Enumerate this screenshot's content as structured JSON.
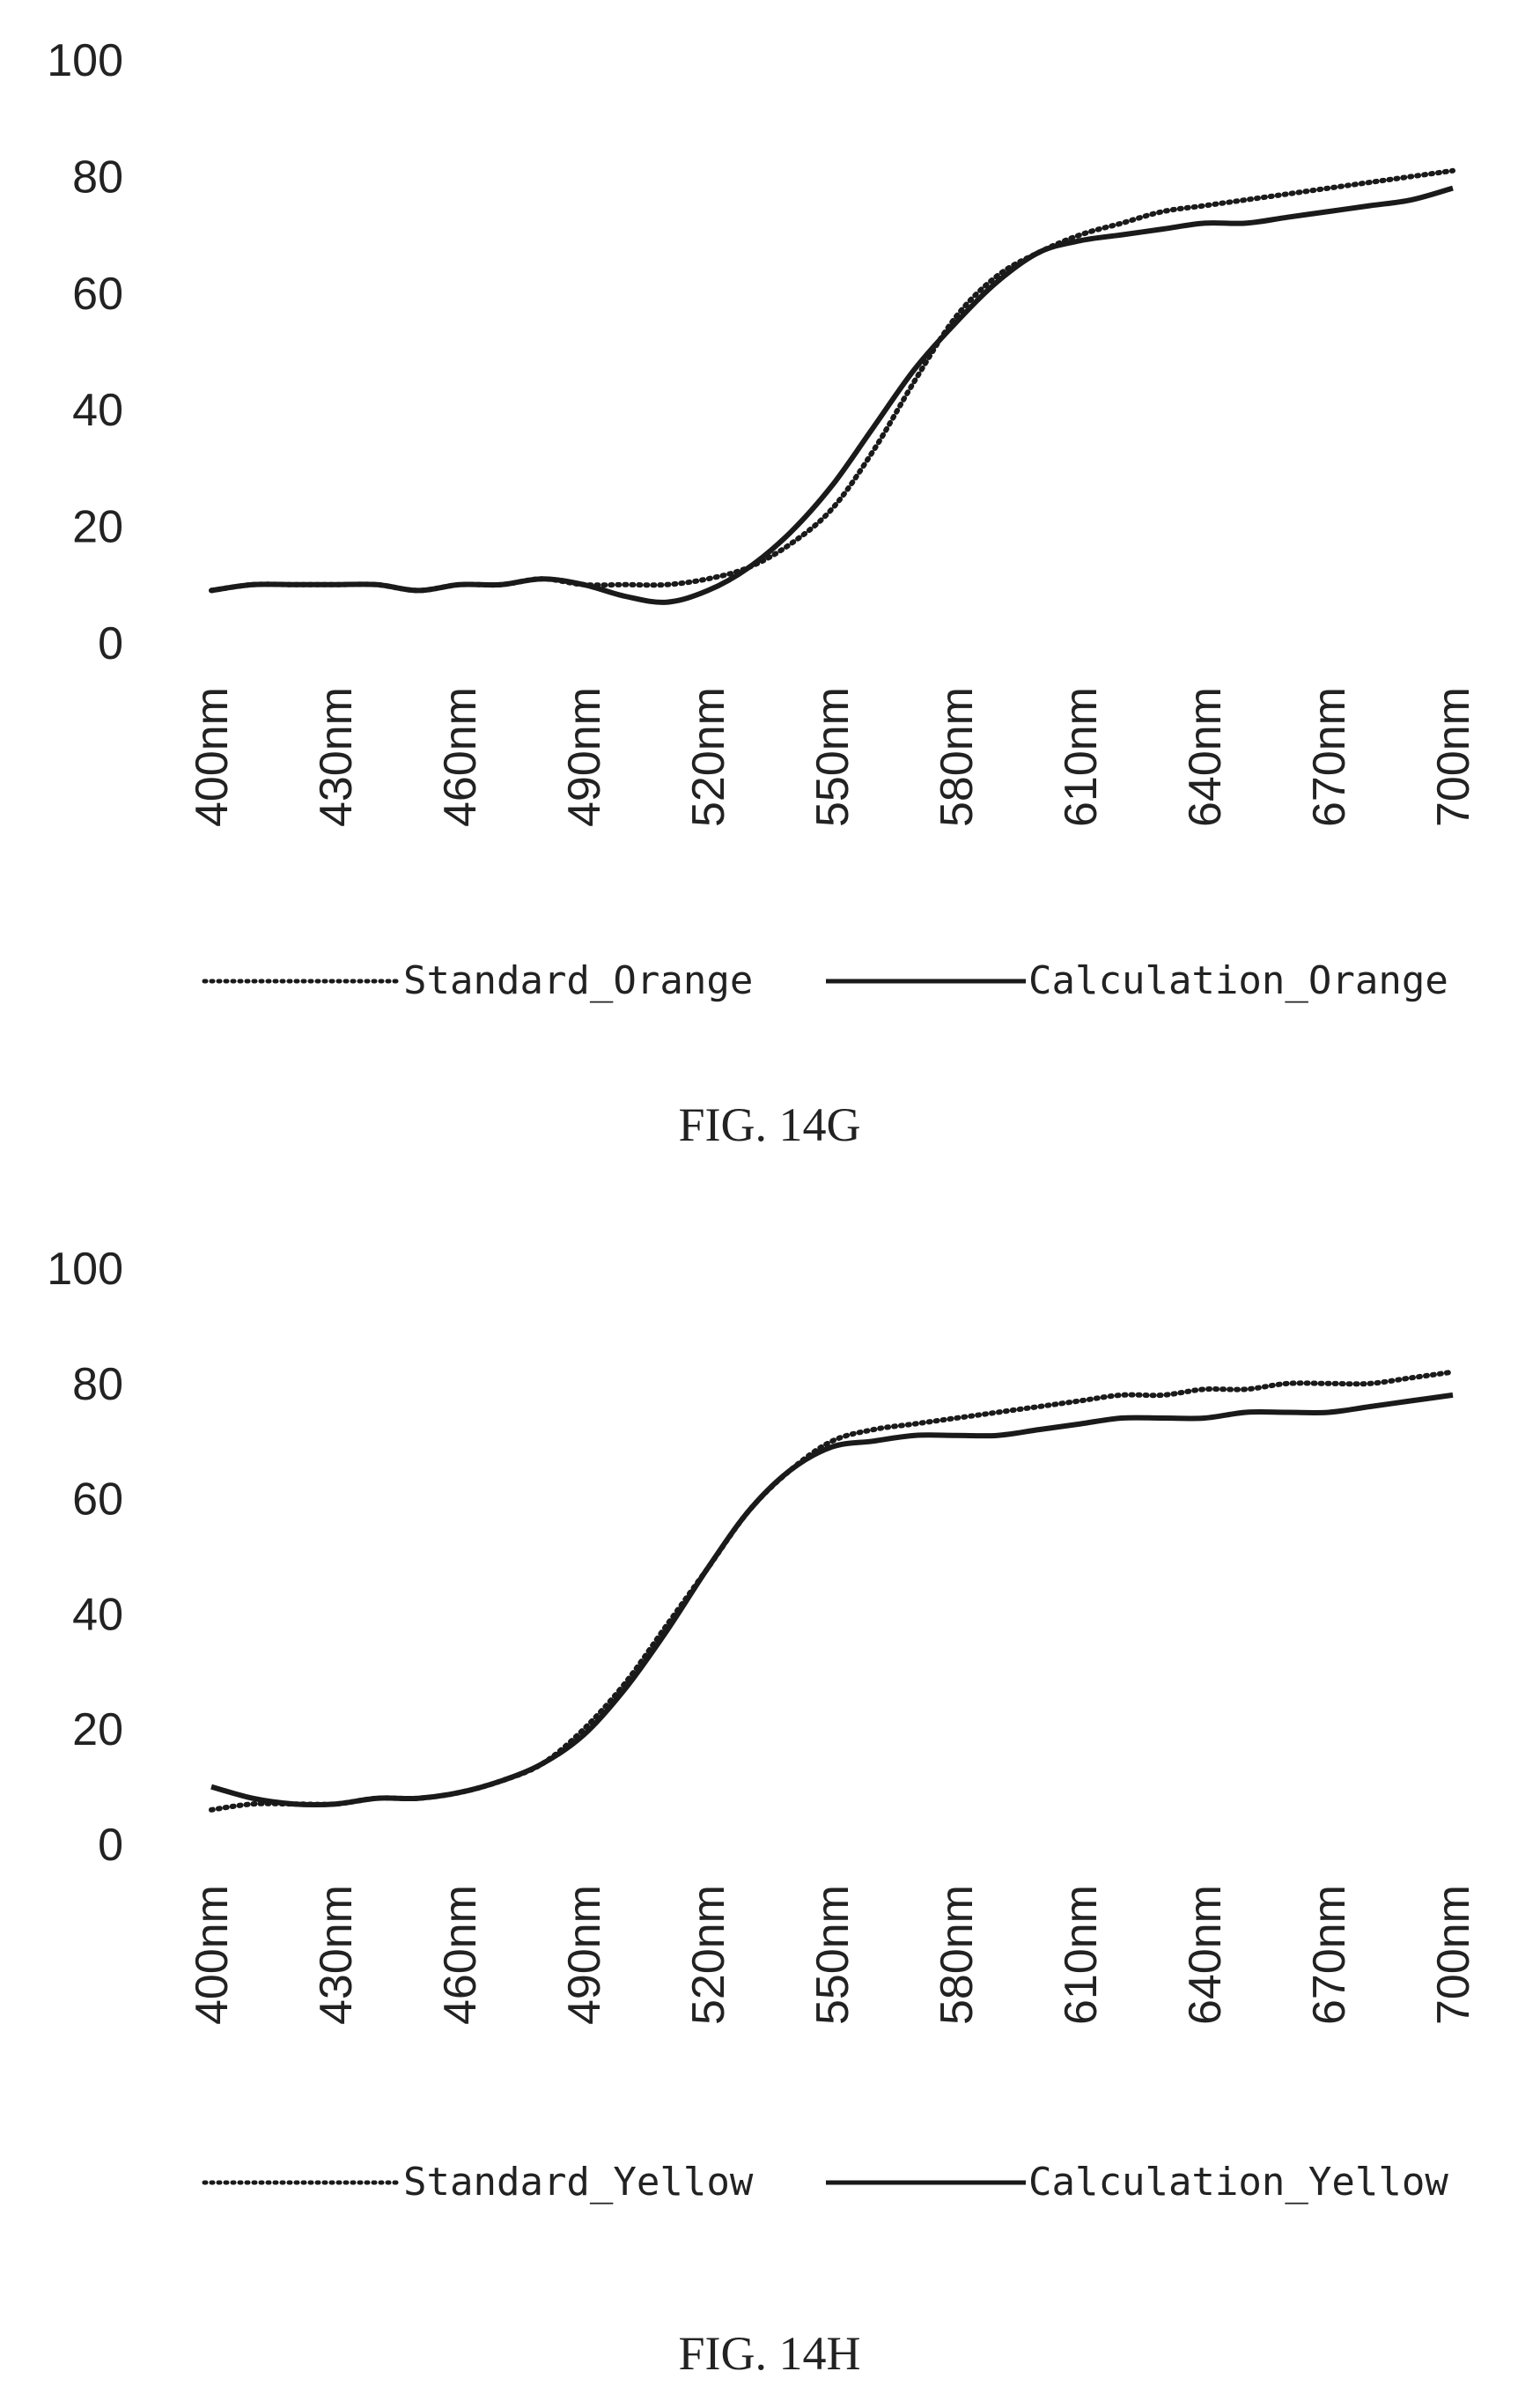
{
  "chart_data": [
    {
      "type": "line",
      "caption": "FIG. 14G",
      "categories": [
        "400nm",
        "430nm",
        "460nm",
        "490nm",
        "520nm",
        "550nm",
        "580nm",
        "610nm",
        "640nm",
        "670nm",
        "700nm"
      ],
      "yticks": [
        "0",
        "20",
        "40",
        "60",
        "80",
        "100"
      ],
      "ylim": [
        0,
        100
      ],
      "x": [
        400,
        410,
        420,
        430,
        440,
        450,
        460,
        470,
        480,
        490,
        500,
        510,
        520,
        530,
        540,
        550,
        560,
        570,
        580,
        590,
        600,
        610,
        620,
        630,
        640,
        650,
        660,
        670,
        680,
        690,
        700
      ],
      "series": [
        {
          "name": "Standard_Orange",
          "style": "dotted",
          "values": [
            9,
            10,
            10,
            10,
            10,
            9,
            10,
            10,
            11,
            10,
            10,
            10,
            11,
            13,
            17,
            23,
            33,
            45,
            56,
            63,
            67,
            70,
            72,
            74,
            75,
            76,
            77,
            78,
            79,
            80,
            81
          ]
        },
        {
          "name": "Calculation_Orange",
          "style": "solid",
          "values": [
            9,
            10,
            10,
            10,
            10,
            9,
            10,
            10,
            11,
            10,
            8,
            7,
            9,
            13,
            19,
            27,
            37,
            47,
            55,
            62,
            67,
            69,
            70,
            71,
            72,
            72,
            73,
            74,
            75,
            76,
            78
          ]
        }
      ],
      "grid": false,
      "legend": "bottom"
    },
    {
      "type": "line",
      "caption": "FIG. 14H",
      "categories": [
        "400nm",
        "430nm",
        "460nm",
        "490nm",
        "520nm",
        "550nm",
        "580nm",
        "610nm",
        "640nm",
        "670nm",
        "700nm"
      ],
      "yticks": [
        "0",
        "20",
        "40",
        "60",
        "80",
        "100"
      ],
      "ylim": [
        0,
        100
      ],
      "x": [
        400,
        410,
        420,
        430,
        440,
        450,
        460,
        470,
        480,
        490,
        500,
        510,
        520,
        530,
        540,
        550,
        560,
        570,
        580,
        590,
        600,
        610,
        620,
        630,
        640,
        650,
        660,
        670,
        680,
        690,
        700
      ],
      "series": [
        {
          "name": "Standard_Yellow",
          "style": "dotted",
          "values": [
            6,
            7,
            7,
            7,
            8,
            8,
            9,
            11,
            14,
            20,
            28,
            38,
            48,
            58,
            65,
            70,
            72,
            73,
            74,
            75,
            76,
            77,
            78,
            78,
            79,
            79,
            80,
            80,
            80,
            81,
            82
          ]
        },
        {
          "name": "Calculation_Yellow",
          "style": "solid",
          "values": [
            10,
            8,
            7,
            7,
            8,
            8,
            9,
            11,
            14,
            19,
            27,
            37,
            48,
            58,
            65,
            69,
            70,
            71,
            71,
            71,
            72,
            73,
            74,
            74,
            74,
            75,
            75,
            75,
            76,
            77,
            78
          ]
        }
      ],
      "grid": false,
      "legend": "bottom"
    }
  ]
}
